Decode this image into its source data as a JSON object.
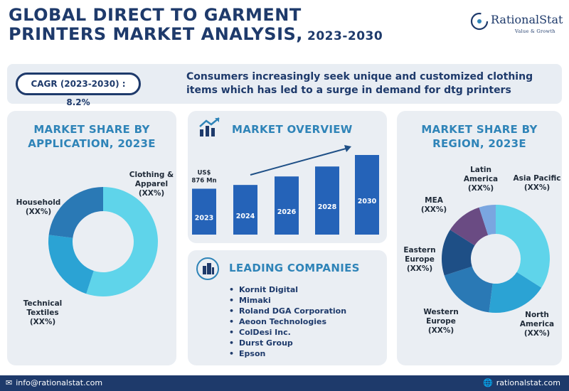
{
  "title": {
    "line1": "GLOBAL DIRECT TO GARMENT",
    "line2": "PRINTERS MARKET ANALYSIS,",
    "years": "2023-2030"
  },
  "logo": {
    "name": "RationalStat",
    "tagline": "Value & Growth"
  },
  "cagr": "CAGR (2023-2030) : 8.2%",
  "headline": "Consumers increasingly seek unique and customized clothing items which has led to a surge in demand for dtg printers",
  "application": {
    "title_line1": "MARKET SHARE BY",
    "title_line2": "APPLICATION, 2023E"
  },
  "overview": {
    "title": "MARKET OVERVIEW"
  },
  "companies": {
    "title": "LEADING COMPANIES",
    "items": [
      "Kornit Digital",
      "Mimaki",
      "Roland DGA Corporation",
      "Aeoon Technologies",
      "ColDesi Inc.",
      "Durst Group",
      "Epson"
    ]
  },
  "region": {
    "title_line1": "MARKET SHARE BY",
    "title_line2": "REGION, 2023E"
  },
  "footer": {
    "email": "info@rationalstat.com",
    "website": "rationalstat.com"
  },
  "colors": {
    "navy": "#1e3a6b",
    "accent": "#2f84b8",
    "bar": "#2563b8",
    "light_cyan": "#5fd4ea",
    "teal": "#2b9fd4",
    "slate_blue": "#2a79b5",
    "mid_blue": "#3d86c4",
    "dark_blue": "#1e4f86",
    "purple": "#6a4b83",
    "lavender": "#7aa6e0"
  },
  "chart_data": [
    {
      "type": "pie",
      "title": "MARKET SHARE BY APPLICATION, 2023E",
      "labels": [
        "Clothing & Apparel",
        "Technical Textiles",
        "Household"
      ],
      "value_labels": [
        "(XX%)",
        "(XX%)",
        "(XX%)"
      ],
      "values": [
        55,
        22,
        23
      ],
      "colors": [
        "#5fd4ea",
        "#2ba3d4",
        "#2a79b5"
      ]
    },
    {
      "type": "bar",
      "title": "MARKET OVERVIEW",
      "categories": [
        "2023",
        "2024",
        "2026",
        "2028",
        "2030"
      ],
      "values": [
        876,
        948,
        1110,
        1300,
        1520
      ],
      "data_labels": [
        "US$\n876 Mn",
        "",
        "",
        "",
        ""
      ]
    },
    {
      "type": "pie",
      "title": "MARKET SHARE BY REGION, 2023E",
      "labels": [
        "Asia Pacific",
        "North America",
        "Western Europe",
        "Eastern Europe",
        "MEA",
        "Latin America"
      ],
      "value_labels": [
        "(XX%)",
        "(XX%)",
        "(XX%)",
        "(XX%)",
        "(XX%)",
        "(XX%)"
      ],
      "values": [
        34,
        18,
        18,
        14,
        11,
        5
      ],
      "colors": [
        "#5fd4ea",
        "#2ba3d4",
        "#2a79b5",
        "#1e4f86",
        "#6a4b83",
        "#7aa6e0"
      ]
    }
  ]
}
